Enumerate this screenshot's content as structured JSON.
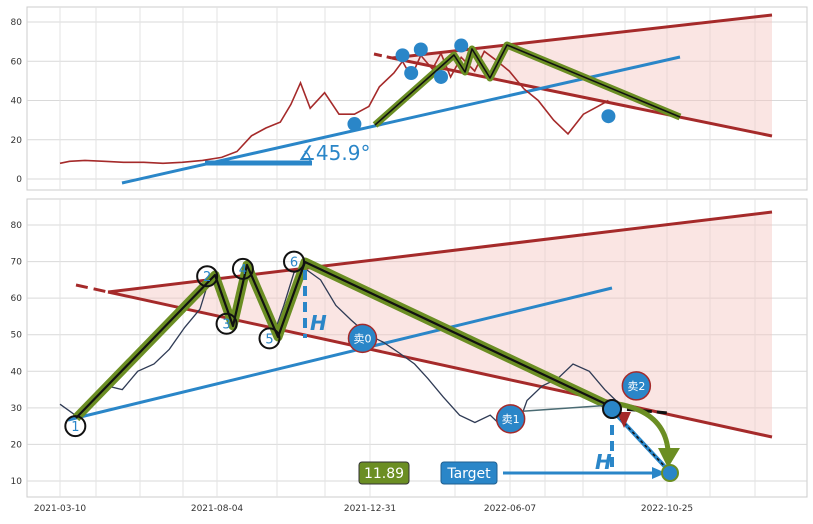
{
  "chart_data": [
    {
      "type": "line",
      "panel": "upper",
      "title": "",
      "xlabel": "",
      "ylabel": "",
      "xlim": [
        "2021-03-10",
        "2023-03-20"
      ],
      "ylim": [
        -5,
        87
      ],
      "y_ticks": [
        0,
        20,
        40,
        60,
        80
      ],
      "grid": true,
      "angle_label": "∡45.9°",
      "series": [
        {
          "color": "#a52a2a",
          "x": [
            "2021-03-10",
            "2021-03-20",
            "2021-04-05",
            "2021-04-25",
            "2021-05-15",
            "2021-06-05",
            "2021-06-25",
            "2021-07-15",
            "2021-08-05",
            "2021-08-25",
            "2021-09-10",
            "2021-09-25",
            "2021-10-10",
            "2021-10-25",
            "2021-11-05",
            "2021-11-15",
            "2021-11-25",
            "2021-12-10",
            "2021-12-25",
            "2022-01-10",
            "2022-01-25",
            "2022-02-05",
            "2022-02-20",
            "2022-03-01",
            "2022-03-10",
            "2022-03-20",
            "2022-04-01",
            "2022-04-10",
            "2022-04-20",
            "2022-05-01",
            "2022-05-15",
            "2022-05-25",
            "2022-06-05",
            "2022-06-20",
            "2022-07-05",
            "2022-07-20",
            "2022-08-05",
            "2022-08-20",
            "2022-09-05",
            "2022-09-20",
            "2022-10-01"
          ],
          "y": [
            8,
            9,
            9.5,
            9,
            8.5,
            8.5,
            8,
            8.5,
            9.5,
            11,
            14,
            22,
            26,
            29,
            38,
            49,
            36,
            44,
            33,
            33,
            37,
            47,
            54,
            60,
            52,
            63,
            56,
            64,
            52,
            62,
            55,
            65,
            61,
            55,
            46,
            40,
            30,
            23,
            33,
            37,
            40
          ]
        }
      ],
      "markers": [
        {
          "x": "2022-01-10",
          "y": 28
        },
        {
          "x": "2022-03-01",
          "y": 63
        },
        {
          "x": "2022-03-10",
          "y": 54
        },
        {
          "x": "2022-03-20",
          "y": 66
        },
        {
          "x": "2022-04-10",
          "y": 52
        },
        {
          "x": "2022-05-01",
          "y": 68
        },
        {
          "x": "2022-10-01",
          "y": 32
        }
      ]
    },
    {
      "type": "line",
      "panel": "lower",
      "title": "",
      "xlabel": "",
      "ylabel": "",
      "xlim": [
        "2021-02-10",
        "2023-03-20"
      ],
      "ylim": [
        5,
        87
      ],
      "y_ticks": [
        10,
        20,
        30,
        40,
        50,
        60,
        70,
        80
      ],
      "x_ticks": [
        "2021-03-10",
        "2021-08-04",
        "2021-12-31",
        "2022-06-07",
        "2022-10-25"
      ],
      "grid": true,
      "series": [
        {
          "color": "#2f3b55",
          "x": [
            "2021-03-10",
            "2021-03-25",
            "2021-04-10",
            "2021-04-25",
            "2021-05-10",
            "2021-05-25",
            "2021-06-10",
            "2021-06-25",
            "2021-07-10",
            "2021-07-25",
            "2021-08-04",
            "2021-08-15",
            "2021-08-25",
            "2021-09-05",
            "2021-09-15",
            "2021-09-25",
            "2021-10-05",
            "2021-10-15",
            "2021-10-25",
            "2021-11-05",
            "2021-11-20",
            "2021-12-05",
            "2021-12-20",
            "2022-01-05",
            "2022-01-20",
            "2022-02-05",
            "2022-02-20",
            "2022-03-05",
            "2022-03-20",
            "2022-04-05",
            "2022-04-20",
            "2022-05-05",
            "2022-05-20",
            "2022-06-01",
            "2022-06-10",
            "2022-06-25",
            "2022-07-10",
            "2022-07-25",
            "2022-08-10",
            "2022-08-25",
            "2022-09-05"
          ],
          "y": [
            31,
            28,
            32,
            36,
            35,
            40,
            42,
            46,
            52,
            57,
            66,
            60,
            53,
            64,
            68,
            60,
            50,
            58,
            67,
            68,
            65,
            58,
            54,
            50,
            48,
            45,
            42,
            38,
            33,
            28,
            26,
            28,
            24,
            25,
            32,
            36,
            38,
            42,
            40,
            35,
            32
          ]
        }
      ],
      "points": [
        {
          "label": "1",
          "x": "2021-03-25",
          "y": 25
        },
        {
          "label": "2",
          "x": "2021-08-01",
          "y": 66
        },
        {
          "label": "3",
          "x": "2021-08-20",
          "y": 53
        },
        {
          "label": "4",
          "x": "2021-09-05",
          "y": 68
        },
        {
          "label": "5",
          "x": "2021-10-01",
          "y": 49
        },
        {
          "label": "6",
          "x": "2021-10-25",
          "y": 70
        }
      ],
      "sell_markers": [
        {
          "label": "卖0",
          "x": "2021-12-31",
          "y": 49
        },
        {
          "label": "卖1",
          "x": "2022-05-25",
          "y": 27
        },
        {
          "label": "卖2",
          "x": "2022-09-25",
          "y": 36
        }
      ],
      "h_label": "H",
      "price_box": "11.89",
      "target_label": "Target"
    }
  ],
  "colors": {
    "pattern_line": "#6b8e23",
    "trend_line": "#2a86c8",
    "channel_line": "#a52a2a",
    "channel_fill": "#f5c6c0",
    "marker_fill": "#2a86c8"
  }
}
